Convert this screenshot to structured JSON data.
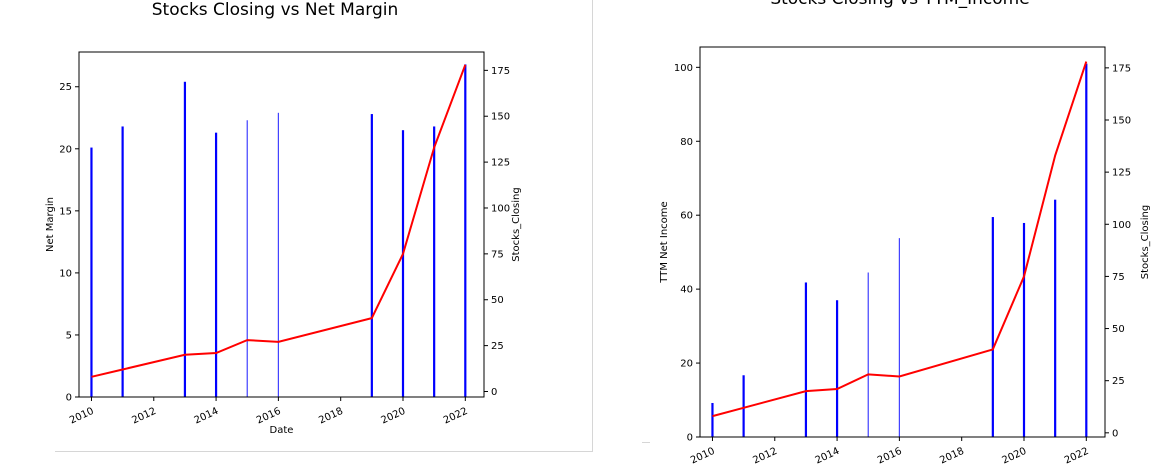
{
  "colors": {
    "bar": "#0000ff",
    "line": "#ff0000",
    "axis": "#000000"
  },
  "chart_data": [
    {
      "type": "bar",
      "title": "Stocks Closing vs Net Margin",
      "xlabel": "Date",
      "ylabel": "Net Margin",
      "y2label": "Stocks_Closing",
      "xlim": [
        2009.6,
        2022.6
      ],
      "ylim": [
        0,
        27.8
      ],
      "y2lim": [
        -3,
        185
      ],
      "x_ticks": [
        2010,
        2012,
        2014,
        2016,
        2018,
        2020,
        2022
      ],
      "y_ticks": [
        0,
        5,
        10,
        15,
        20,
        25
      ],
      "y2_ticks": [
        0,
        25,
        50,
        75,
        100,
        125,
        150,
        175
      ],
      "series": [
        {
          "kind": "bar",
          "axis": "left",
          "x": [
            2010,
            2011,
            2013,
            2014,
            2015,
            2016,
            2019,
            2020,
            2021,
            2022
          ],
          "values": [
            20.1,
            21.8,
            25.4,
            21.3,
            22.3,
            22.9,
            22.8,
            21.5,
            21.8,
            26.8
          ]
        },
        {
          "kind": "line",
          "axis": "right",
          "x": [
            2010,
            2011,
            2013,
            2014,
            2015,
            2016,
            2019,
            2020,
            2021,
            2022
          ],
          "values": [
            8,
            12,
            20,
            21,
            28,
            27,
            40,
            75,
            133,
            178
          ]
        }
      ]
    },
    {
      "type": "bar",
      "title": "Stocks Closing vs TTM_Income",
      "xlabel": "",
      "ylabel": "TTM Net Income",
      "y2label": "Stocks_Closing",
      "xlim": [
        2009.6,
        2022.6
      ],
      "ylim": [
        0,
        105.5
      ],
      "y2lim": [
        -2,
        185
      ],
      "x_ticks": [
        2010,
        2012,
        2014,
        2016,
        2018,
        2020,
        2022
      ],
      "y_ticks": [
        0,
        20,
        40,
        60,
        80,
        100
      ],
      "y2_ticks": [
        0,
        25,
        50,
        75,
        100,
        125,
        150,
        175
      ],
      "series": [
        {
          "kind": "bar",
          "axis": "left",
          "x": [
            2010,
            2011,
            2013,
            2014,
            2015,
            2016,
            2019,
            2020,
            2021,
            2022
          ],
          "values": [
            9.2,
            16.7,
            41.8,
            37.0,
            44.5,
            53.8,
            59.5,
            57.9,
            64.2,
            101.0
          ]
        },
        {
          "kind": "line",
          "axis": "right",
          "x": [
            2010,
            2011,
            2013,
            2014,
            2015,
            2016,
            2019,
            2020,
            2021,
            2022
          ],
          "values": [
            8,
            12,
            20,
            21,
            28,
            27,
            40,
            75,
            133,
            178
          ]
        }
      ]
    }
  ]
}
